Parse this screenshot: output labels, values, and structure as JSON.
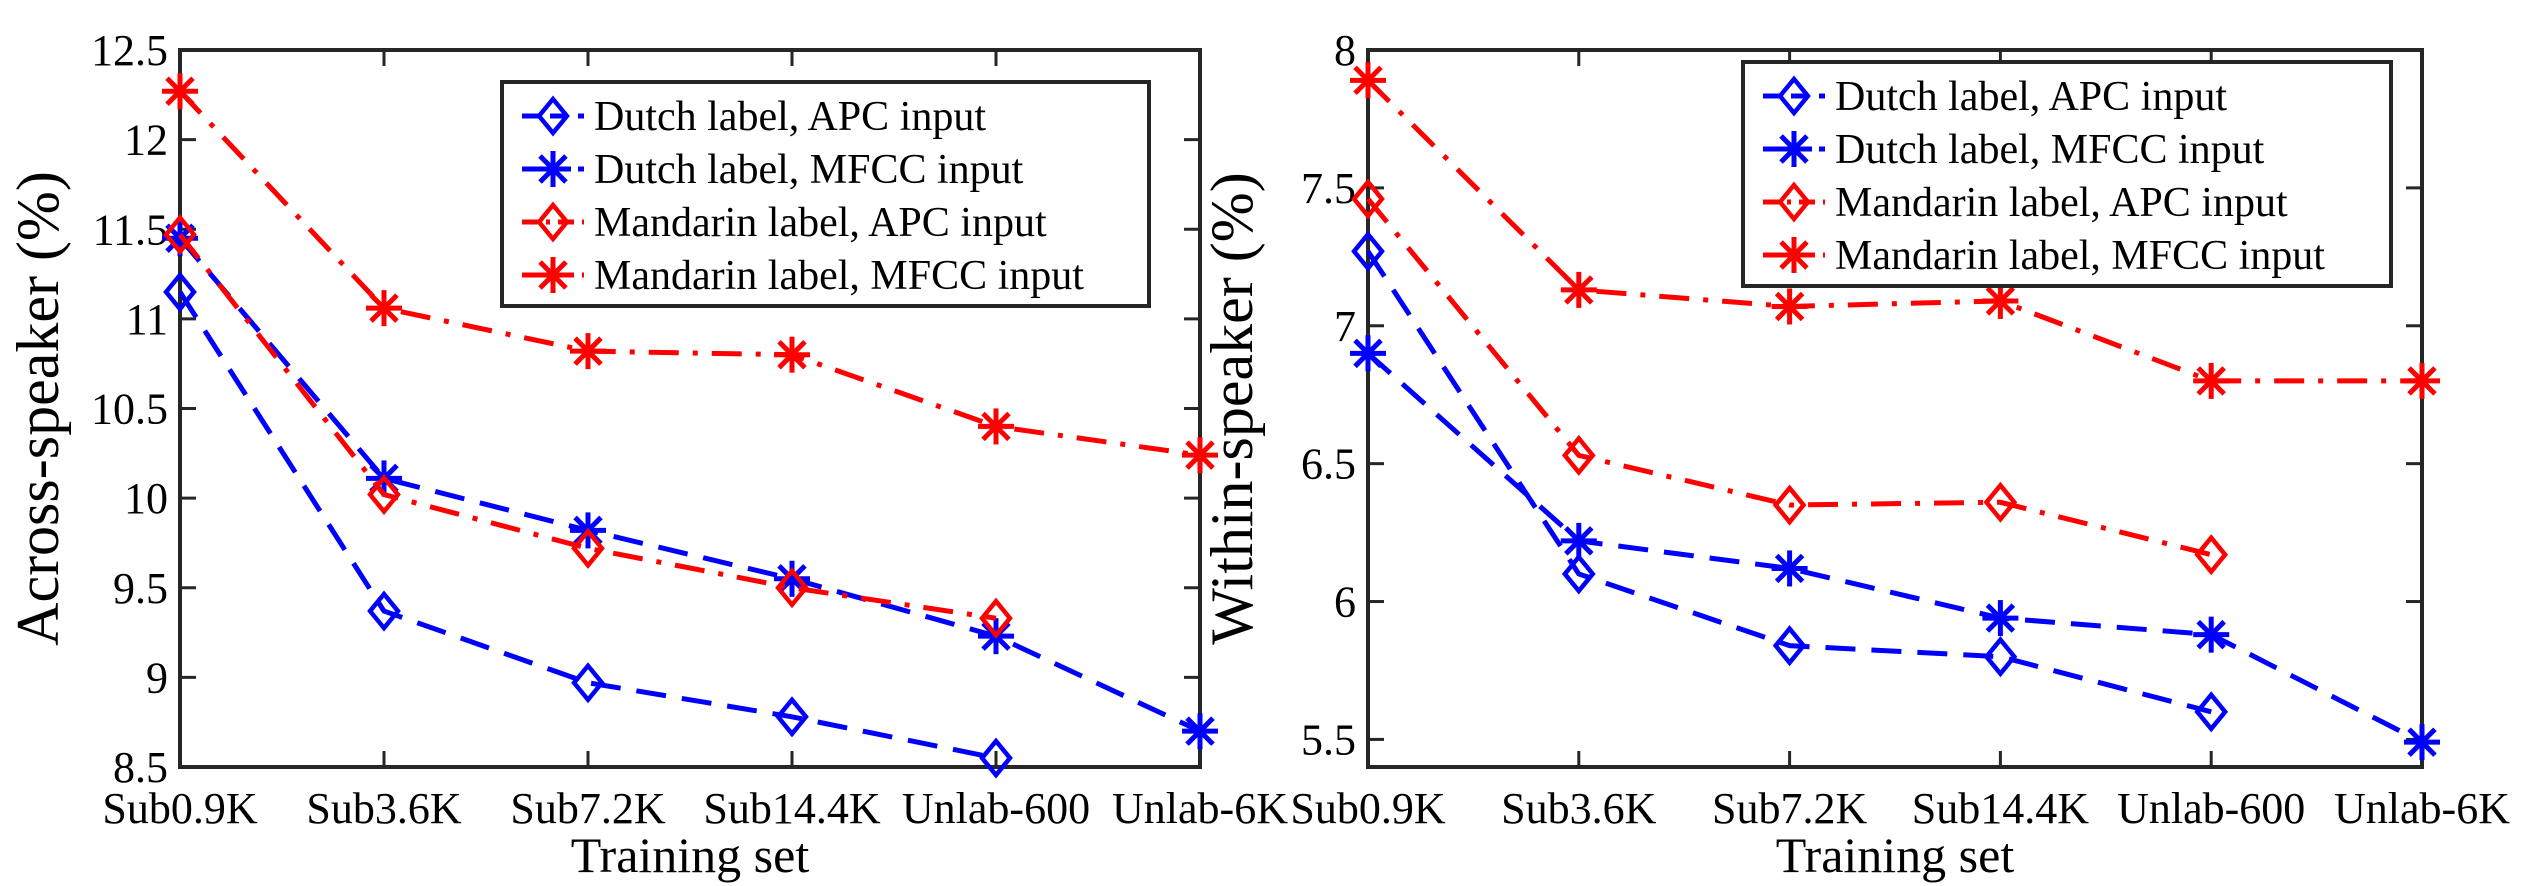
{
  "chart_data": [
    {
      "type": "line",
      "xlabel": "Training set",
      "ylabel": "Across-speaker (%)",
      "categories": [
        "Sub0.9K",
        "Sub3.6K",
        "Sub7.2K",
        "Sub14.4K",
        "Unlab-600",
        "Unlab-6K"
      ],
      "ylim": [
        8.5,
        12.5
      ],
      "yticks": [
        "8.5",
        "9",
        "9.5",
        "10",
        "10.5",
        "11",
        "11.5",
        "12",
        "12.5"
      ],
      "legend_position": "top-right",
      "grid": false,
      "series": [
        {
          "name": "Dutch label, APC input",
          "color": "#0000ff",
          "marker": "diamond",
          "dash": "dashed",
          "values": [
            11.15,
            9.37,
            8.97,
            8.78,
            8.55,
            null
          ]
        },
        {
          "name": "Dutch label, MFCC input",
          "color": "#0000ff",
          "marker": "asterisk",
          "dash": "dashed",
          "values": [
            11.45,
            10.11,
            9.82,
            9.55,
            9.23,
            8.7
          ]
        },
        {
          "name": "Mandarin label, APC input",
          "color": "#ff0000",
          "marker": "diamond",
          "dash": "dashdot",
          "values": [
            11.47,
            10.02,
            9.72,
            9.5,
            9.33,
            null
          ]
        },
        {
          "name": "Mandarin label, MFCC input",
          "color": "#ff0000",
          "marker": "asterisk",
          "dash": "dashdot",
          "values": [
            12.27,
            11.06,
            10.82,
            10.8,
            10.4,
            10.24
          ]
        }
      ]
    },
    {
      "type": "line",
      "xlabel": "Training set",
      "ylabel": "Within-speaker (%)",
      "categories": [
        "Sub0.9K",
        "Sub3.6K",
        "Sub7.2K",
        "Sub14.4K",
        "Unlab-600",
        "Unlab-6K"
      ],
      "ylim": [
        5.4,
        8.0
      ],
      "yticks": [
        "5.5",
        "6",
        "6.5",
        "7",
        "7.5",
        "8"
      ],
      "legend_position": "top-right",
      "grid": false,
      "series": [
        {
          "name": "Dutch label, APC input",
          "color": "#0000ff",
          "marker": "diamond",
          "dash": "dashed",
          "values": [
            7.27,
            6.1,
            5.84,
            5.8,
            5.6,
            null
          ]
        },
        {
          "name": "Dutch label, MFCC input",
          "color": "#0000ff",
          "marker": "asterisk",
          "dash": "dashed",
          "values": [
            6.9,
            6.22,
            6.12,
            5.94,
            5.88,
            5.49
          ]
        },
        {
          "name": "Mandarin label, APC input",
          "color": "#ff0000",
          "marker": "diamond",
          "dash": "dashdot",
          "values": [
            7.46,
            6.53,
            6.35,
            6.36,
            6.17,
            null
          ]
        },
        {
          "name": "Mandarin label, MFCC input",
          "color": "#ff0000",
          "marker": "asterisk",
          "dash": "dashdot",
          "values": [
            7.89,
            7.13,
            7.07,
            7.09,
            6.8,
            6.8
          ]
        }
      ]
    }
  ]
}
